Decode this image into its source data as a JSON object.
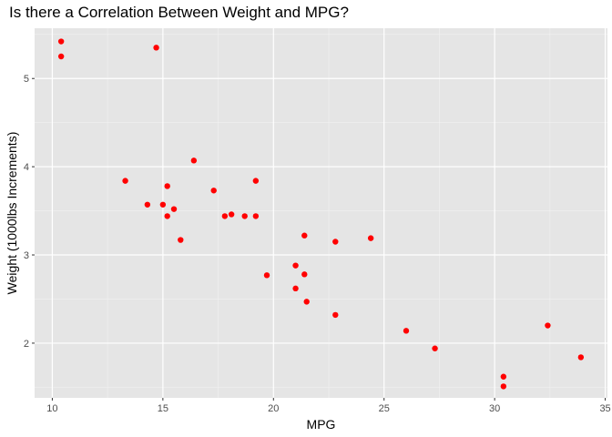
{
  "chart_data": {
    "type": "scatter",
    "title": "Is there a Correlation Between Weight and MPG?",
    "xlabel": "MPG",
    "ylabel": "Weight (1000lbs Increments)",
    "xlim": [
      9.2,
      35.1
    ],
    "ylim": [
      1.38,
      5.57
    ],
    "x_ticks": [
      10,
      15,
      20,
      25,
      30,
      35
    ],
    "y_ticks": [
      2,
      3,
      4,
      5
    ],
    "grid": true,
    "point_color": "#ff0000",
    "panel_color": "#e5e5e5",
    "points": [
      {
        "x": 10.4,
        "y": 5.42
      },
      {
        "x": 10.4,
        "y": 5.25
      },
      {
        "x": 14.7,
        "y": 5.35
      },
      {
        "x": 13.3,
        "y": 3.84
      },
      {
        "x": 14.3,
        "y": 3.57
      },
      {
        "x": 15.0,
        "y": 3.57
      },
      {
        "x": 15.2,
        "y": 3.78
      },
      {
        "x": 15.2,
        "y": 3.44
      },
      {
        "x": 15.5,
        "y": 3.52
      },
      {
        "x": 15.8,
        "y": 3.17
      },
      {
        "x": 16.4,
        "y": 4.07
      },
      {
        "x": 17.3,
        "y": 3.73
      },
      {
        "x": 17.8,
        "y": 3.44
      },
      {
        "x": 18.1,
        "y": 3.46
      },
      {
        "x": 18.7,
        "y": 3.44
      },
      {
        "x": 19.2,
        "y": 3.84
      },
      {
        "x": 19.2,
        "y": 3.44
      },
      {
        "x": 19.7,
        "y": 2.77
      },
      {
        "x": 21.0,
        "y": 2.88
      },
      {
        "x": 21.0,
        "y": 2.62
      },
      {
        "x": 21.4,
        "y": 3.22
      },
      {
        "x": 21.4,
        "y": 2.78
      },
      {
        "x": 21.5,
        "y": 2.47
      },
      {
        "x": 22.8,
        "y": 3.15
      },
      {
        "x": 22.8,
        "y": 2.32
      },
      {
        "x": 24.4,
        "y": 3.19
      },
      {
        "x": 26.0,
        "y": 2.14
      },
      {
        "x": 27.3,
        "y": 1.94
      },
      {
        "x": 30.4,
        "y": 1.62
      },
      {
        "x": 30.4,
        "y": 1.51
      },
      {
        "x": 32.4,
        "y": 2.2
      },
      {
        "x": 33.9,
        "y": 1.84
      }
    ]
  }
}
